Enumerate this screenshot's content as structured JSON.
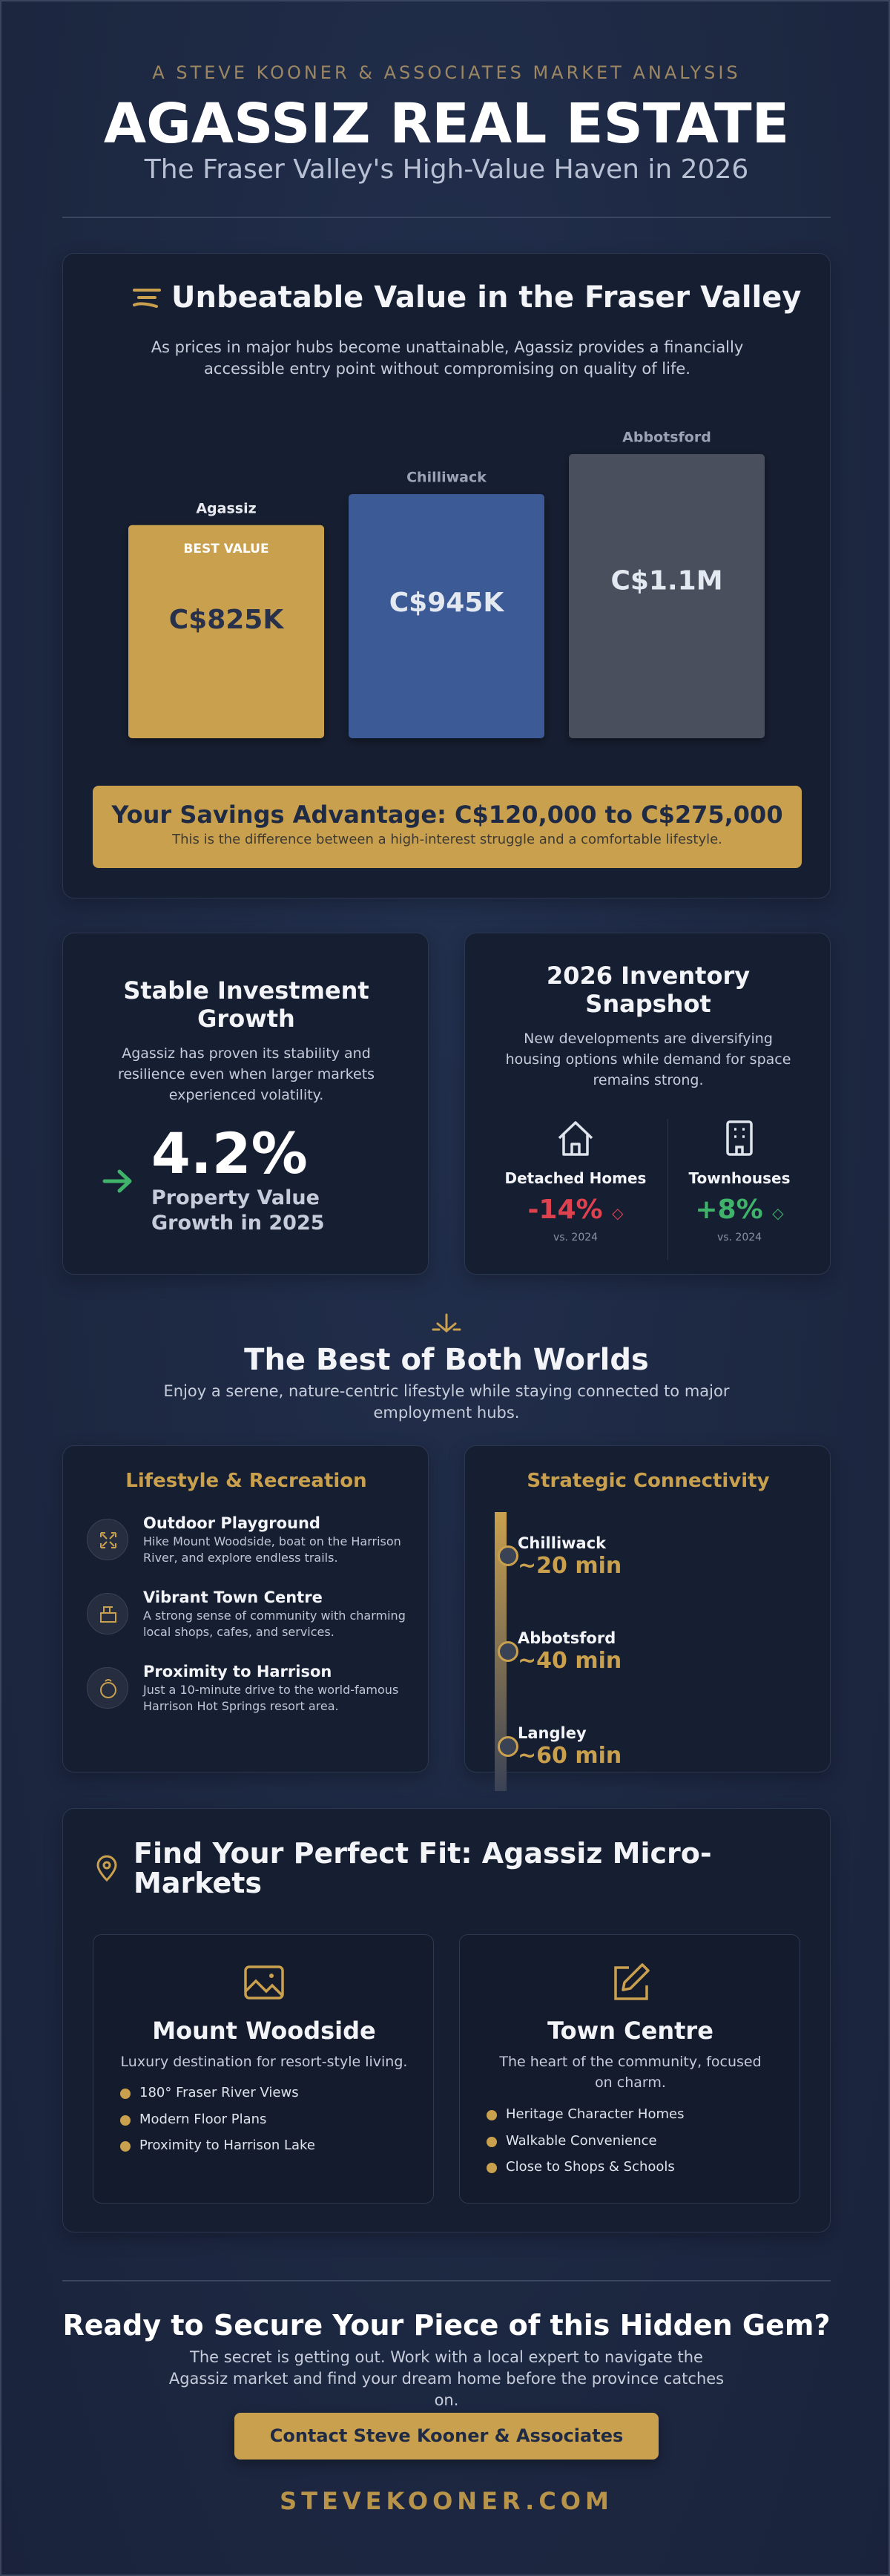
{
  "header": {
    "kicker": "A STEVE KOONER & ASSOCIATES MARKET ANALYSIS",
    "title": "AGASSIZ REAL ESTATE",
    "subtitle": "The Fraser Valley's High-Value Haven in 2026"
  },
  "value_section": {
    "title": "Unbeatable Value in the Fraser Valley",
    "text": "As prices in major hubs become unattainable, Agassiz provides a financially accessible entry point without compromising on quality of life.",
    "badge": "BEST VALUE",
    "savings_title": "Your Savings Advantage: C$120,000 to C$275,000",
    "savings_text": "This is the difference between a high-interest struggle and a comfortable lifestyle."
  },
  "chart_data": {
    "type": "bar",
    "categories": [
      "Agassiz",
      "Chilliwack",
      "Abbotsford"
    ],
    "values": [
      825000,
      945000,
      1100000
    ],
    "value_labels": [
      "C$825K",
      "C$945K",
      "C$1.1M"
    ],
    "colors": [
      "#c9a04e",
      "#3b5a96",
      "#4a505c"
    ]
  },
  "growth": {
    "title": "Stable Investment Growth",
    "text": "Agassiz has proven its stability and resilience even when larger markets experienced volatility.",
    "stat": "4.2%",
    "stat_label": "Property Value Growth in 2025"
  },
  "inventory": {
    "title": "2026 Inventory Snapshot",
    "text": "New developments are diversifying housing options while demand for space remains strong.",
    "items": [
      {
        "label": "Detached Homes",
        "change": "-14%",
        "note": "vs. 2024"
      },
      {
        "label": "Townhouses",
        "change": "+8%",
        "note": "vs. 2024"
      }
    ]
  },
  "worlds": {
    "title": "The Best of Both Worlds",
    "text": "Enjoy a serene, nature-centric lifestyle while staying connected to major employment hubs."
  },
  "lifestyle": {
    "title": "Lifestyle & Recreation",
    "items": [
      {
        "title": "Outdoor Playground",
        "text": "Hike Mount Woodside, boat on the Harrison River, and explore endless trails."
      },
      {
        "title": "Vibrant Town Centre",
        "text": "A strong sense of community with charming local shops, cafes, and services."
      },
      {
        "title": "Proximity to Harrison",
        "text": "Just a 10-minute drive to the world-famous Harrison Hot Springs resort area."
      }
    ]
  },
  "connectivity": {
    "title": "Strategic Connectivity",
    "items": [
      {
        "place": "Chilliwack",
        "time": "~20 min"
      },
      {
        "place": "Abbotsford",
        "time": "~40 min"
      },
      {
        "place": "Langley",
        "time": "~60 min"
      }
    ]
  },
  "micro": {
    "title": "Find Your Perfect Fit: Agassiz Micro-Markets",
    "markets": [
      {
        "name": "Mount Woodside",
        "text": "Luxury destination for resort-style living.",
        "features": [
          "180° Fraser River Views",
          "Modern Floor Plans",
          "Proximity to Harrison Lake"
        ]
      },
      {
        "name": "Town Centre",
        "text": "The heart of the community, focused on charm.",
        "features": [
          "Heritage Character Homes",
          "Walkable Convenience",
          "Close to Shops & Schools"
        ]
      }
    ]
  },
  "cta": {
    "title": "Ready to Secure Your Piece of this Hidden Gem?",
    "text": "The secret is getting out. Work with a local expert to navigate the Agassiz market and find your dream home before the province catches on.",
    "button": "Contact Steve Kooner & Associates",
    "site": "STEVEKOONER.COM"
  }
}
